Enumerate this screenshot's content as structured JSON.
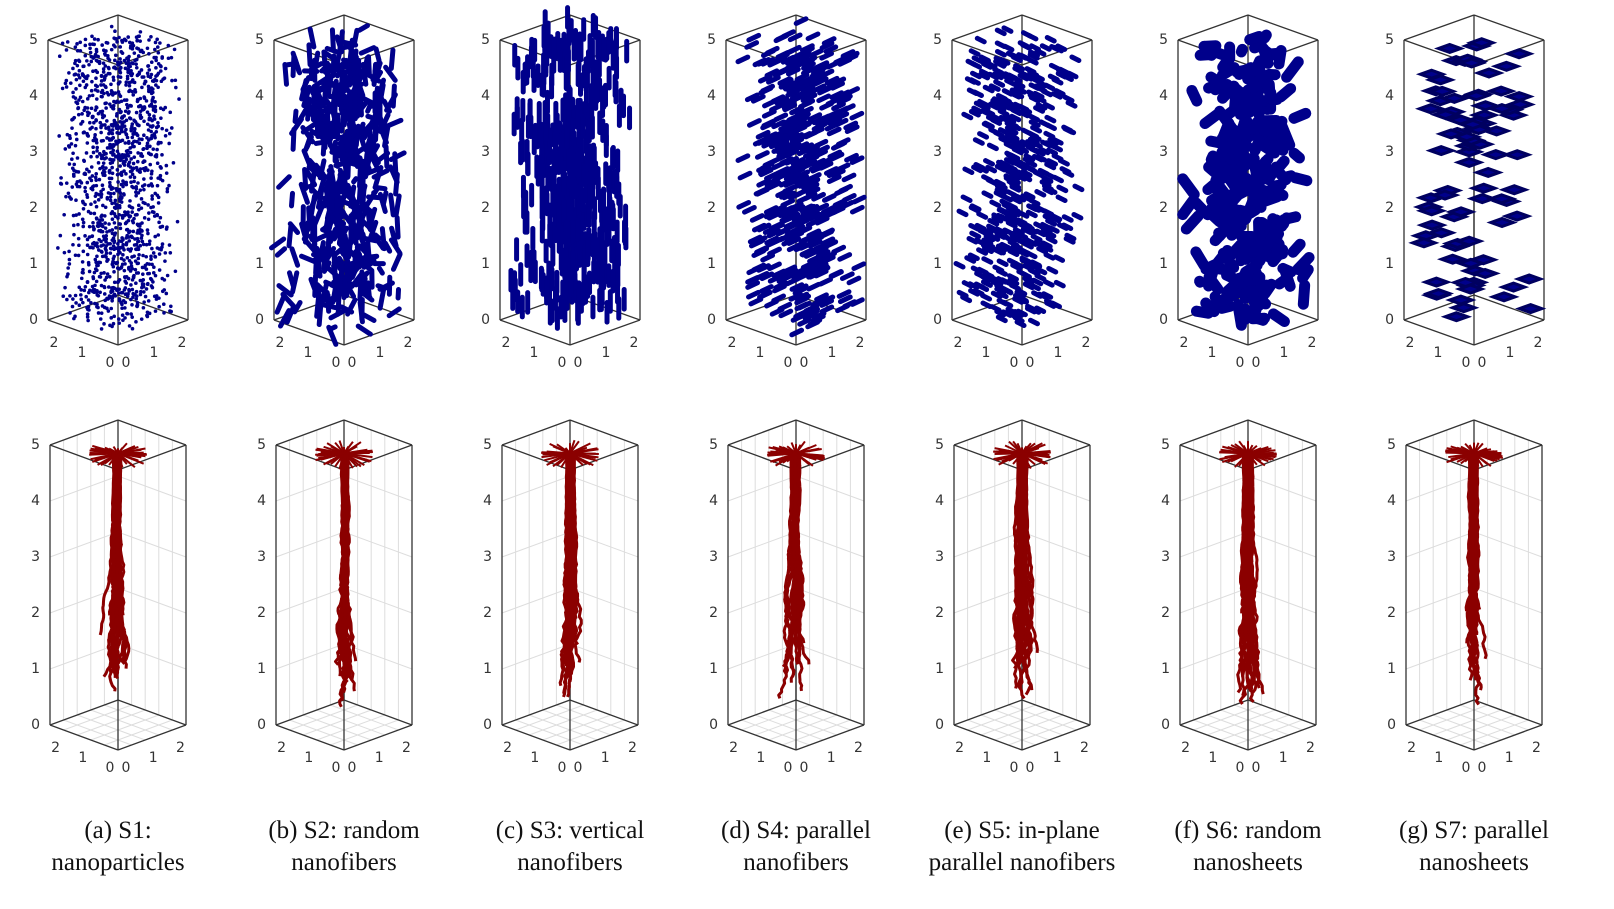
{
  "panels": [
    {
      "caption": [
        "(a) S1:",
        "nanoparticles"
      ],
      "top": {
        "z_ticks": [
          0,
          1,
          2,
          3,
          4,
          5
        ],
        "x_ticks": [
          0,
          1,
          2
        ],
        "y_ticks": [
          0,
          1,
          2
        ]
      },
      "bottom": {
        "z_ticks": [
          0,
          1,
          2,
          3,
          4,
          5
        ],
        "x_ticks": [
          0,
          1,
          2
        ],
        "y_ticks": [
          0,
          1,
          2
        ]
      }
    },
    {
      "caption": [
        "(b) S2: random",
        "nanofibers"
      ],
      "top": {
        "z_ticks": [
          0,
          1,
          2,
          3,
          4,
          5
        ],
        "x_ticks": [
          0,
          1,
          2
        ],
        "y_ticks": [
          0,
          1,
          2
        ]
      },
      "bottom": {
        "z_ticks": [
          0,
          1,
          2,
          3,
          4,
          5
        ],
        "x_ticks": [
          0,
          1,
          2
        ],
        "y_ticks": [
          0,
          1,
          2
        ]
      }
    },
    {
      "caption": [
        "(c) S3: vertical",
        "nanofibers"
      ],
      "top": {
        "z_ticks": [
          0,
          1,
          2,
          3,
          4,
          5
        ],
        "x_ticks": [
          0,
          1,
          2
        ],
        "y_ticks": [
          0,
          1,
          2
        ]
      },
      "bottom": {
        "z_ticks": [
          0,
          1,
          2,
          3,
          4,
          5
        ],
        "x_ticks": [
          0,
          1,
          2
        ],
        "y_ticks": [
          0,
          1,
          2
        ]
      }
    },
    {
      "caption": [
        "(d) S4: parallel",
        "nanofibers"
      ],
      "top": {
        "z_ticks": [
          0,
          1,
          2,
          3,
          4,
          5
        ],
        "x_ticks": [
          0,
          1,
          2
        ],
        "y_ticks": [
          0,
          1,
          2
        ]
      },
      "bottom": {
        "z_ticks": [
          0,
          1,
          2,
          3,
          4,
          5
        ],
        "x_ticks": [
          0,
          1,
          2
        ],
        "y_ticks": [
          0,
          1,
          2
        ]
      }
    },
    {
      "caption": [
        "(e) S5: in-plane",
        "parallel nanofibers"
      ],
      "top": {
        "z_ticks": [
          0,
          1,
          2,
          3,
          4,
          5
        ],
        "x_ticks": [
          0,
          1,
          2
        ],
        "y_ticks": [
          0,
          1,
          2
        ]
      },
      "bottom": {
        "z_ticks": [
          0,
          1,
          2,
          3,
          4,
          5
        ],
        "x_ticks": [
          0,
          1,
          2
        ],
        "y_ticks": [
          0,
          1,
          2
        ]
      }
    },
    {
      "caption": [
        "(f) S6: random",
        "nanosheets"
      ],
      "top": {
        "z_ticks": [
          0,
          1,
          2,
          3,
          4,
          5
        ],
        "x_ticks": [
          0,
          1,
          2
        ],
        "y_ticks": [
          0,
          1,
          2
        ]
      },
      "bottom": {
        "z_ticks": [
          0,
          1,
          2,
          3,
          4,
          5
        ],
        "x_ticks": [
          0,
          1,
          2
        ],
        "y_ticks": [
          0,
          1,
          2
        ]
      }
    },
    {
      "caption": [
        "(g) S7: parallel",
        "nanosheets"
      ],
      "top": {
        "z_ticks": [
          0,
          1,
          2,
          3,
          4,
          5
        ],
        "x_ticks": [
          0,
          1,
          2
        ],
        "y_ticks": [
          0,
          1,
          2
        ]
      },
      "bottom": {
        "z_ticks": [
          0,
          1,
          2,
          3,
          4,
          5
        ],
        "x_ticks": [
          0,
          1,
          2
        ],
        "y_ticks": [
          0,
          1,
          2
        ]
      }
    }
  ]
}
